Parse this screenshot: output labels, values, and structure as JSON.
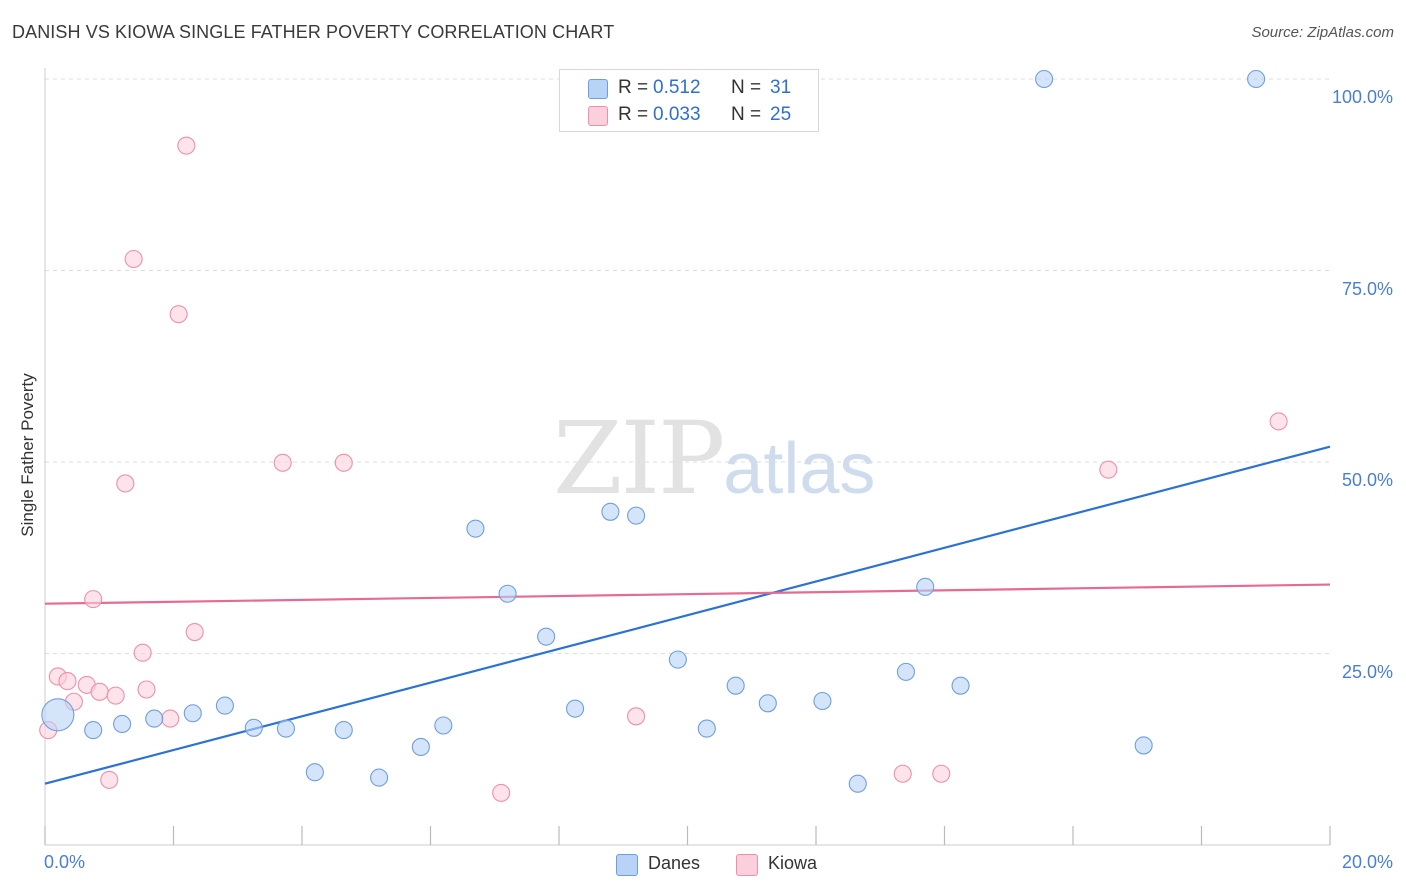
{
  "title": "DANISH VS KIOWA SINGLE FATHER POVERTY CORRELATION CHART",
  "source": "Source: ZipAtlas.com",
  "watermark": {
    "zip": "ZIP",
    "atlas": "atlas"
  },
  "legend": {
    "rows": [
      {
        "r_label": "R =",
        "r_value": "0.512",
        "n_label": "N =",
        "n_value": "31"
      },
      {
        "r_label": "R =",
        "r_value": "0.033",
        "n_label": "N =",
        "n_value": "25"
      }
    ]
  },
  "bottom_legend": [
    "Danes",
    "Kiowa"
  ],
  "colors": {
    "danes_fill": "#b8d3f5",
    "danes_stroke": "#6f9ee0",
    "danes_line": "#2a72d4",
    "kiowa_fill": "#fbd0dc",
    "kiowa_stroke": "#f08fab",
    "kiowa_line": "#e66a93",
    "grid": "#dddddd",
    "tick_text": "#4a7fd0"
  },
  "chart_data": {
    "type": "scatter",
    "title": "DANISH VS KIOWA SINGLE FATHER POVERTY CORRELATION CHART",
    "xlabel": "",
    "ylabel": "Single Father Poverty",
    "xlim": [
      0,
      20
    ],
    "ylim": [
      0,
      103
    ],
    "x_tick_labels": [
      "0.0%",
      "20.0%"
    ],
    "y_ticks": [
      25,
      50,
      75,
      100
    ],
    "y_tick_labels": [
      "25.0%",
      "50.0%",
      "75.0%",
      "100.0%"
    ],
    "grid": true,
    "legend_position": "top-center",
    "series": [
      {
        "name": "Danes",
        "r": 0.512,
        "n": 31,
        "trend": {
          "x": [
            0,
            20
          ],
          "y": [
            8,
            52
          ]
        },
        "points": [
          {
            "x": 0.2,
            "y": 17.0,
            "size": "large"
          },
          {
            "x": 0.75,
            "y": 15.0
          },
          {
            "x": 1.2,
            "y": 15.8
          },
          {
            "x": 1.7,
            "y": 16.5
          },
          {
            "x": 2.3,
            "y": 17.2
          },
          {
            "x": 2.8,
            "y": 18.2
          },
          {
            "x": 3.25,
            "y": 15.3
          },
          {
            "x": 3.75,
            "y": 15.2
          },
          {
            "x": 4.2,
            "y": 9.5
          },
          {
            "x": 4.65,
            "y": 15.0
          },
          {
            "x": 5.2,
            "y": 8.8
          },
          {
            "x": 5.85,
            "y": 12.8
          },
          {
            "x": 6.2,
            "y": 15.6
          },
          {
            "x": 6.7,
            "y": 41.3
          },
          {
            "x": 7.2,
            "y": 32.8
          },
          {
            "x": 7.8,
            "y": 27.2
          },
          {
            "x": 8.25,
            "y": 17.8
          },
          {
            "x": 8.8,
            "y": 43.5
          },
          {
            "x": 9.2,
            "y": 43.0
          },
          {
            "x": 9.85,
            "y": 24.2
          },
          {
            "x": 10.3,
            "y": 15.2
          },
          {
            "x": 10.75,
            "y": 20.8
          },
          {
            "x": 11.25,
            "y": 18.5
          },
          {
            "x": 12.1,
            "y": 18.8
          },
          {
            "x": 12.65,
            "y": 8.0
          },
          {
            "x": 13.4,
            "y": 22.6
          },
          {
            "x": 13.7,
            "y": 33.7
          },
          {
            "x": 14.25,
            "y": 20.8
          },
          {
            "x": 15.55,
            "y": 100.0
          },
          {
            "x": 17.1,
            "y": 13.0
          },
          {
            "x": 18.85,
            "y": 100.0
          }
        ]
      },
      {
        "name": "Kiowa",
        "r": 0.033,
        "n": 25,
        "trend": {
          "x": [
            0,
            20
          ],
          "y": [
            31.5,
            34
          ]
        },
        "points": [
          {
            "x": 0.05,
            "y": 15.0
          },
          {
            "x": 0.2,
            "y": 22.0
          },
          {
            "x": 0.35,
            "y": 21.4
          },
          {
            "x": 0.45,
            "y": 18.7
          },
          {
            "x": 0.65,
            "y": 20.9
          },
          {
            "x": 0.75,
            "y": 32.1
          },
          {
            "x": 0.85,
            "y": 20.0
          },
          {
            "x": 1.0,
            "y": 8.5
          },
          {
            "x": 1.1,
            "y": 19.5
          },
          {
            "x": 1.25,
            "y": 47.2
          },
          {
            "x": 1.38,
            "y": 76.5
          },
          {
            "x": 1.52,
            "y": 25.1
          },
          {
            "x": 1.58,
            "y": 20.3
          },
          {
            "x": 1.95,
            "y": 16.5
          },
          {
            "x": 2.08,
            "y": 69.3
          },
          {
            "x": 2.2,
            "y": 91.3
          },
          {
            "x": 2.33,
            "y": 27.8
          },
          {
            "x": 3.7,
            "y": 49.9
          },
          {
            "x": 4.65,
            "y": 49.9
          },
          {
            "x": 7.1,
            "y": 6.8
          },
          {
            "x": 9.2,
            "y": 16.8
          },
          {
            "x": 13.35,
            "y": 9.3
          },
          {
            "x": 13.95,
            "y": 9.3
          },
          {
            "x": 16.55,
            "y": 49.0
          },
          {
            "x": 19.2,
            "y": 55.3
          }
        ]
      }
    ]
  }
}
